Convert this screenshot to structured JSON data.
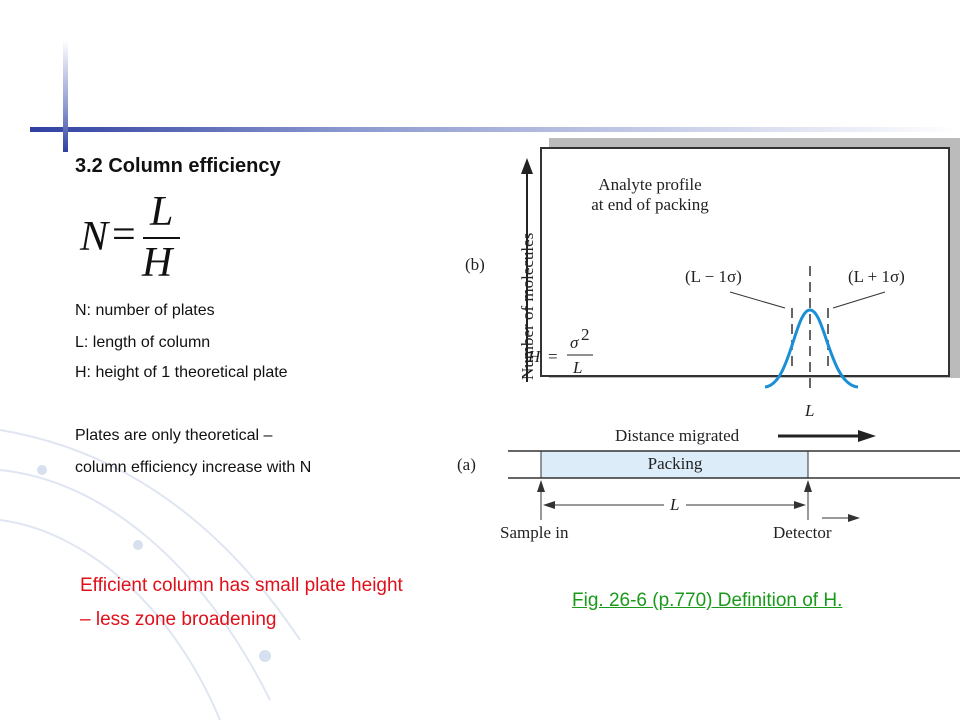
{
  "slide": {
    "title": "3.2 Column efficiency",
    "formula": {
      "lhs": "N",
      "op": "=",
      "numerator": "L",
      "denominator": "H"
    },
    "definitions": [
      "N: number of plates",
      "L: length of column",
      "H: height of 1 theoretical plate"
    ],
    "notes": [
      "Plates are only theoretical –",
      "column efficiency increase with N"
    ],
    "highlight": [
      "Efficient column has small plate height",
      "– less zone broadening"
    ],
    "caption": "Fig. 26-6 (p.770)  Definition of H.",
    "figure": {
      "panel_b": {
        "label": "(b)",
        "y_axis_label": "Number of molecules",
        "profile_label": [
          "Analyte profile",
          "at end of packing"
        ],
        "left_width": "(L − 1σ)",
        "right_width": "(L + 1σ)",
        "formula": {
          "lhs": "H",
          "op": "=",
          "numerator": "σ",
          "exponent": "2",
          "denominator": "L"
        },
        "center_label": "L"
      },
      "panel_a": {
        "label": "(a)",
        "direction_label": "Distance migrated",
        "packing_label": "Packing",
        "length_label": "L",
        "inlet_label": "Sample in",
        "outlet_label": "Detector"
      }
    }
  }
}
